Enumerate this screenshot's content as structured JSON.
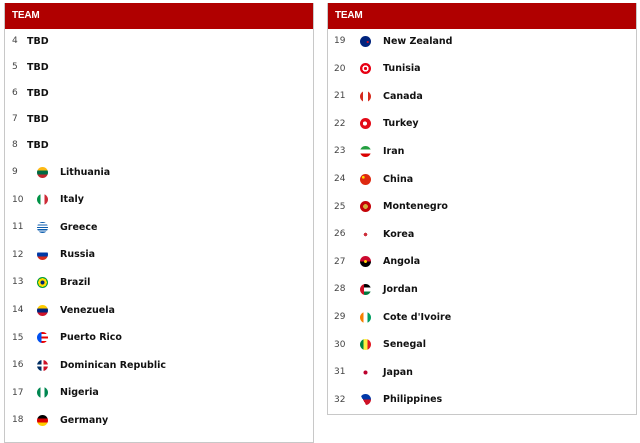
{
  "left": {
    "header": "TEAM",
    "rows": [
      {
        "rank": "4",
        "team": "TBD"
      },
      {
        "rank": "5",
        "team": "TBD"
      },
      {
        "rank": "6",
        "team": "TBD"
      },
      {
        "rank": "7",
        "team": "TBD"
      },
      {
        "rank": "8",
        "team": "TBD"
      },
      {
        "rank": "9",
        "team": "Lithuania",
        "flag": "linear-gradient(#fdb913 33%,#006a44 33% 66%,#c1272d 66%)"
      },
      {
        "rank": "10",
        "team": "Italy",
        "flag": "linear-gradient(90deg,#009246 33%,#fff 33% 66%,#ce2b37 66%)"
      },
      {
        "rank": "11",
        "team": "Greece",
        "flag": "repeating-linear-gradient(#0d5eaf 0 1.2px,#fff 1.2px 2.4px)"
      },
      {
        "rank": "12",
        "team": "Russia",
        "flag": "linear-gradient(#fff 33%,#0039a6 33% 66%,#d52b1e 66%)"
      },
      {
        "rank": "13",
        "team": "Brazil",
        "flag": "radial-gradient(circle,#002776 25%,#ffdf00 26% 55%,#009c3b 56%)"
      },
      {
        "rank": "14",
        "team": "Venezuela",
        "flag": "linear-gradient(#ffcc00 33%,#00247d 33% 66%,#cf142b 66%)"
      },
      {
        "rank": "15",
        "team": "Puerto Rico",
        "flag": "linear-gradient(90deg,#0050f0 40%,transparent 40%),repeating-linear-gradient(#ed0000 0 2.2px,#fff 2.2px 4.4px)"
      },
      {
        "rank": "16",
        "team": "Dominican Republic",
        "flag": "linear-gradient(90deg,transparent 42%,#fff 42% 58%,transparent 58%),linear-gradient(transparent 42%,#fff 42% 58%,transparent 58%),linear-gradient(90deg,#002d62 50%,#ce1126 50%)"
      },
      {
        "rank": "17",
        "team": "Nigeria",
        "flag": "linear-gradient(90deg,#008751 33%,#fff 33% 66%,#008751 66%)"
      },
      {
        "rank": "18",
        "team": "Germany",
        "flag": "linear-gradient(#000 33%,#dd0000 33% 66%,#ffce00 66%)"
      }
    ]
  },
  "right": {
    "header": "TEAM",
    "rows": [
      {
        "rank": "19",
        "team": "New Zealand",
        "flag": "radial-gradient(circle at 70% 55%,#cc142b 10%,#00247d 12%)"
      },
      {
        "rank": "20",
        "team": "Tunisia",
        "flag": "radial-gradient(circle,#e70013 20%,#fff 22% 40%,#e70013 42%)"
      },
      {
        "rank": "21",
        "team": "Canada",
        "flag": "linear-gradient(90deg,#d52b1e 28%,#fff 28% 72%,#d52b1e 72%)"
      },
      {
        "rank": "22",
        "team": "Turkey",
        "flag": "radial-gradient(circle at 45% 50%,#fff 25%,#e30a17 27%)"
      },
      {
        "rank": "23",
        "team": "Iran",
        "flag": "linear-gradient(#239f40 33%,#fff 33% 66%,#da0000 66%)"
      },
      {
        "rank": "24",
        "team": "China",
        "flag": "radial-gradient(circle at 30% 30%,#ffde00 12%,#de2910 14%)"
      },
      {
        "rank": "25",
        "team": "Montenegro",
        "flag": "radial-gradient(circle,#d3ae3b 30%,#c40308 32%)"
      },
      {
        "rank": "26",
        "team": "Korea",
        "flag": "radial-gradient(circle,#cd2e3a 22%,#fff 24%)"
      },
      {
        "rank": "27",
        "team": "Angola",
        "flag": "radial-gradient(circle,#ffcb00 18%,transparent 20%),linear-gradient(#cc092f 50%,#000 50%)"
      },
      {
        "rank": "28",
        "team": "Jordan",
        "flag": "linear-gradient(90deg,#ce1126 35%,transparent 35%),linear-gradient(#000 33%,#fff 33% 66%,#007a3d 66%)"
      },
      {
        "rank": "29",
        "team": "Cote d'Ivoire",
        "flag": "linear-gradient(90deg,#f77f00 33%,#fff 33% 66%,#009e60 66%)"
      },
      {
        "rank": "30",
        "team": "Senegal",
        "flag": "linear-gradient(90deg,#00853f 33%,#fdef42 33% 66%,#e31b23 66%)"
      },
      {
        "rank": "31",
        "team": "Japan",
        "flag": "radial-gradient(circle,#bc002d 25%,#fff 27%)"
      },
      {
        "rank": "32",
        "team": "Philippines",
        "flag": "linear-gradient(60deg,#fff 35%,transparent 35%),linear-gradient(120deg,transparent 0%,transparent 0%),linear-gradient(#0038a8 50%,#ce1126 50%)"
      }
    ]
  },
  "colors": {
    "header_bg": "#b00000"
  }
}
